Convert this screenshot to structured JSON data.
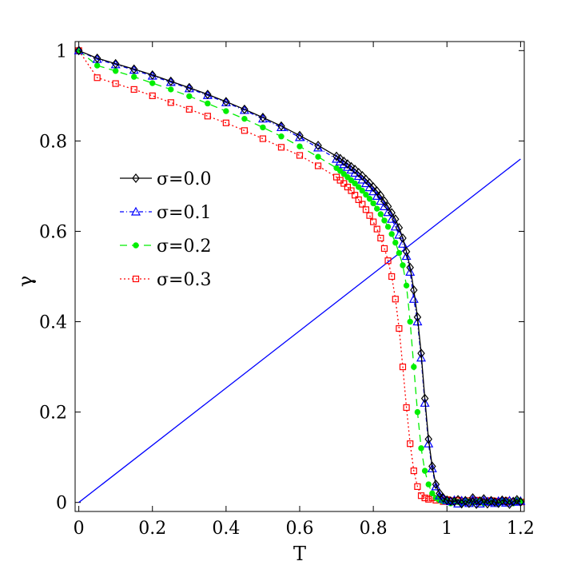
{
  "chart_data": {
    "type": "line",
    "xlabel": "T",
    "ylabel": "γ",
    "xlim": [
      -0.01,
      1.21
    ],
    "ylim": [
      -0.02,
      1.02
    ],
    "xticks": [
      "0",
      "0.2",
      "0.4",
      "0.6",
      "0.8",
      "1",
      "1.2"
    ],
    "yticks": [
      "0",
      "0.2",
      "0.4",
      "0.6",
      "0.8",
      "1"
    ],
    "grid": false,
    "legend_position": "center-left",
    "reference_line": {
      "x": [
        0,
        1.2
      ],
      "y": [
        0,
        0.76
      ],
      "color": "#0000ff"
    },
    "series": [
      {
        "name": "σ=0.0",
        "color": "#000000",
        "marker": "diamond",
        "dash": "",
        "x": [
          0,
          0.05,
          0.1,
          0.15,
          0.2,
          0.25,
          0.3,
          0.35,
          0.4,
          0.45,
          0.5,
          0.55,
          0.6,
          0.65,
          0.7,
          0.71,
          0.72,
          0.73,
          0.74,
          0.75,
          0.76,
          0.77,
          0.78,
          0.79,
          0.8,
          0.81,
          0.82,
          0.83,
          0.84,
          0.85,
          0.86,
          0.87,
          0.88,
          0.89,
          0.9,
          0.91,
          0.92,
          0.93,
          0.94,
          0.95,
          0.96,
          0.97,
          0.98,
          0.99,
          1.0,
          1.01,
          1.02,
          1.03,
          1.04,
          1.05,
          1.06,
          1.07,
          1.08,
          1.09,
          1.1,
          1.11,
          1.12,
          1.13,
          1.14,
          1.15,
          1.16,
          1.17,
          1.18,
          1.19,
          1.2
        ],
        "y": [
          1.0,
          0.983,
          0.971,
          0.959,
          0.946,
          0.932,
          0.918,
          0.903,
          0.887,
          0.87,
          0.852,
          0.833,
          0.812,
          0.79,
          0.766,
          0.761,
          0.755,
          0.749,
          0.743,
          0.737,
          0.73,
          0.723,
          0.715,
          0.707,
          0.698,
          0.689,
          0.679,
          0.667,
          0.655,
          0.641,
          0.627,
          0.608,
          0.585,
          0.555,
          0.52,
          0.47,
          0.41,
          0.33,
          0.23,
          0.14,
          0.08,
          0.04,
          0.02,
          0.01,
          0.005,
          0.003,
          0.002,
          0.006,
          -0.003,
          0.004,
          -0.002,
          0.01,
          -0.004,
          0.003,
          0.008,
          -0.003,
          0.004,
          0.001,
          -0.002,
          0.005,
          0.003,
          -0.004,
          0.002,
          0.006,
          0.001
        ]
      },
      {
        "name": "σ=0.1",
        "color": "#0000ff",
        "marker": "triangle",
        "dash": "5,3,1,3",
        "x": [
          0,
          0.05,
          0.1,
          0.15,
          0.2,
          0.25,
          0.3,
          0.35,
          0.4,
          0.45,
          0.5,
          0.55,
          0.6,
          0.65,
          0.7,
          0.71,
          0.72,
          0.73,
          0.74,
          0.75,
          0.76,
          0.77,
          0.78,
          0.79,
          0.8,
          0.81,
          0.82,
          0.83,
          0.84,
          0.85,
          0.86,
          0.87,
          0.88,
          0.89,
          0.9,
          0.91,
          0.92,
          0.93,
          0.94,
          0.95,
          0.96,
          0.97,
          0.98,
          0.99,
          1.0,
          1.01,
          1.02,
          1.03,
          1.04,
          1.05,
          1.06,
          1.07,
          1.08,
          1.09,
          1.1,
          1.11,
          1.12,
          1.13,
          1.14,
          1.15,
          1.16,
          1.17,
          1.18,
          1.19,
          1.2
        ],
        "y": [
          1.0,
          0.981,
          0.969,
          0.957,
          0.944,
          0.93,
          0.916,
          0.901,
          0.885,
          0.868,
          0.849,
          0.83,
          0.808,
          0.785,
          0.76,
          0.754,
          0.748,
          0.742,
          0.736,
          0.729,
          0.722,
          0.714,
          0.706,
          0.697,
          0.688,
          0.678,
          0.667,
          0.655,
          0.642,
          0.627,
          0.61,
          0.592,
          0.572,
          0.545,
          0.51,
          0.45,
          0.4,
          0.32,
          0.22,
          0.13,
          0.075,
          0.035,
          0.015,
          0.008,
          0.004,
          0.002,
          0.005,
          -0.003,
          0.004,
          0.001,
          -0.002,
          0.006,
          0.002,
          -0.003,
          0.004,
          0.002,
          0.001,
          -0.002,
          0.003,
          0.002,
          -0.001,
          0.004,
          0.002,
          0.001,
          0.003
        ]
      },
      {
        "name": "σ=0.2",
        "color": "#00ee00",
        "marker": "dot",
        "dash": "9,6",
        "x": [
          0,
          0.05,
          0.1,
          0.15,
          0.2,
          0.25,
          0.3,
          0.35,
          0.4,
          0.45,
          0.5,
          0.55,
          0.6,
          0.65,
          0.7,
          0.71,
          0.72,
          0.73,
          0.74,
          0.75,
          0.76,
          0.77,
          0.78,
          0.79,
          0.8,
          0.81,
          0.82,
          0.83,
          0.84,
          0.85,
          0.86,
          0.87,
          0.88,
          0.89,
          0.9,
          0.91,
          0.92,
          0.93,
          0.94,
          0.95,
          0.96,
          0.97,
          0.98,
          0.99,
          1.0,
          1.01,
          1.02,
          1.03,
          1.04,
          1.05,
          1.06,
          1.07,
          1.08,
          1.09,
          1.1,
          1.11,
          1.12,
          1.13,
          1.14,
          1.15,
          1.16,
          1.17,
          1.18,
          1.19,
          1.2
        ],
        "y": [
          1.0,
          0.967,
          0.955,
          0.942,
          0.928,
          0.914,
          0.899,
          0.883,
          0.866,
          0.849,
          0.83,
          0.81,
          0.788,
          0.765,
          0.74,
          0.734,
          0.727,
          0.72,
          0.713,
          0.706,
          0.698,
          0.69,
          0.681,
          0.672,
          0.662,
          0.65,
          0.638,
          0.624,
          0.61,
          0.594,
          0.575,
          0.552,
          0.525,
          0.48,
          0.4,
          0.3,
          0.2,
          0.12,
          0.07,
          0.04,
          0.02,
          0.01,
          0.005,
          0.002,
          0.003,
          -0.002,
          0.004,
          0.001,
          -0.003,
          0.005,
          0.002,
          -0.001,
          0.003,
          0.004,
          -0.002,
          0.001,
          0.003,
          0.002,
          -0.003,
          0.004,
          0.002,
          0.001,
          -0.002,
          0.005,
          0.003
        ]
      },
      {
        "name": "σ=0.3",
        "color": "#ff0000",
        "marker": "square",
        "dash": "2,3",
        "x": [
          0,
          0.05,
          0.1,
          0.15,
          0.2,
          0.25,
          0.3,
          0.35,
          0.4,
          0.45,
          0.5,
          0.55,
          0.6,
          0.65,
          0.7,
          0.71,
          0.72,
          0.73,
          0.74,
          0.75,
          0.76,
          0.77,
          0.78,
          0.79,
          0.8,
          0.81,
          0.82,
          0.83,
          0.84,
          0.85,
          0.86,
          0.87,
          0.88,
          0.89,
          0.9,
          0.91,
          0.92,
          0.93,
          0.94,
          0.95,
          0.96,
          0.97,
          0.98,
          0.99,
          1.0,
          1.01,
          1.02,
          1.03,
          1.04,
          1.05,
          1.06,
          1.07,
          1.08,
          1.09,
          1.1,
          1.11,
          1.12,
          1.13,
          1.14,
          1.15,
          1.16,
          1.17,
          1.18,
          1.19,
          1.2
        ],
        "y": [
          1.0,
          0.94,
          0.927,
          0.914,
          0.9,
          0.885,
          0.87,
          0.855,
          0.84,
          0.823,
          0.805,
          0.786,
          0.768,
          0.745,
          0.72,
          0.713,
          0.706,
          0.698,
          0.69,
          0.68,
          0.67,
          0.66,
          0.648,
          0.635,
          0.621,
          0.605,
          0.585,
          0.562,
          0.535,
          0.5,
          0.45,
          0.385,
          0.3,
          0.21,
          0.13,
          0.07,
          0.035,
          0.015,
          0.01,
          0.007,
          0.01,
          0.005,
          0.008,
          0.002,
          0.006,
          0.004,
          0.002,
          0.005,
          0.003,
          0.001,
          0.004,
          0.002,
          0.005,
          0.003,
          0.001,
          0.002,
          0.004,
          0.001,
          0.003,
          0.002,
          0.004,
          0.001,
          0.002,
          0.003,
          0.001
        ]
      }
    ]
  }
}
